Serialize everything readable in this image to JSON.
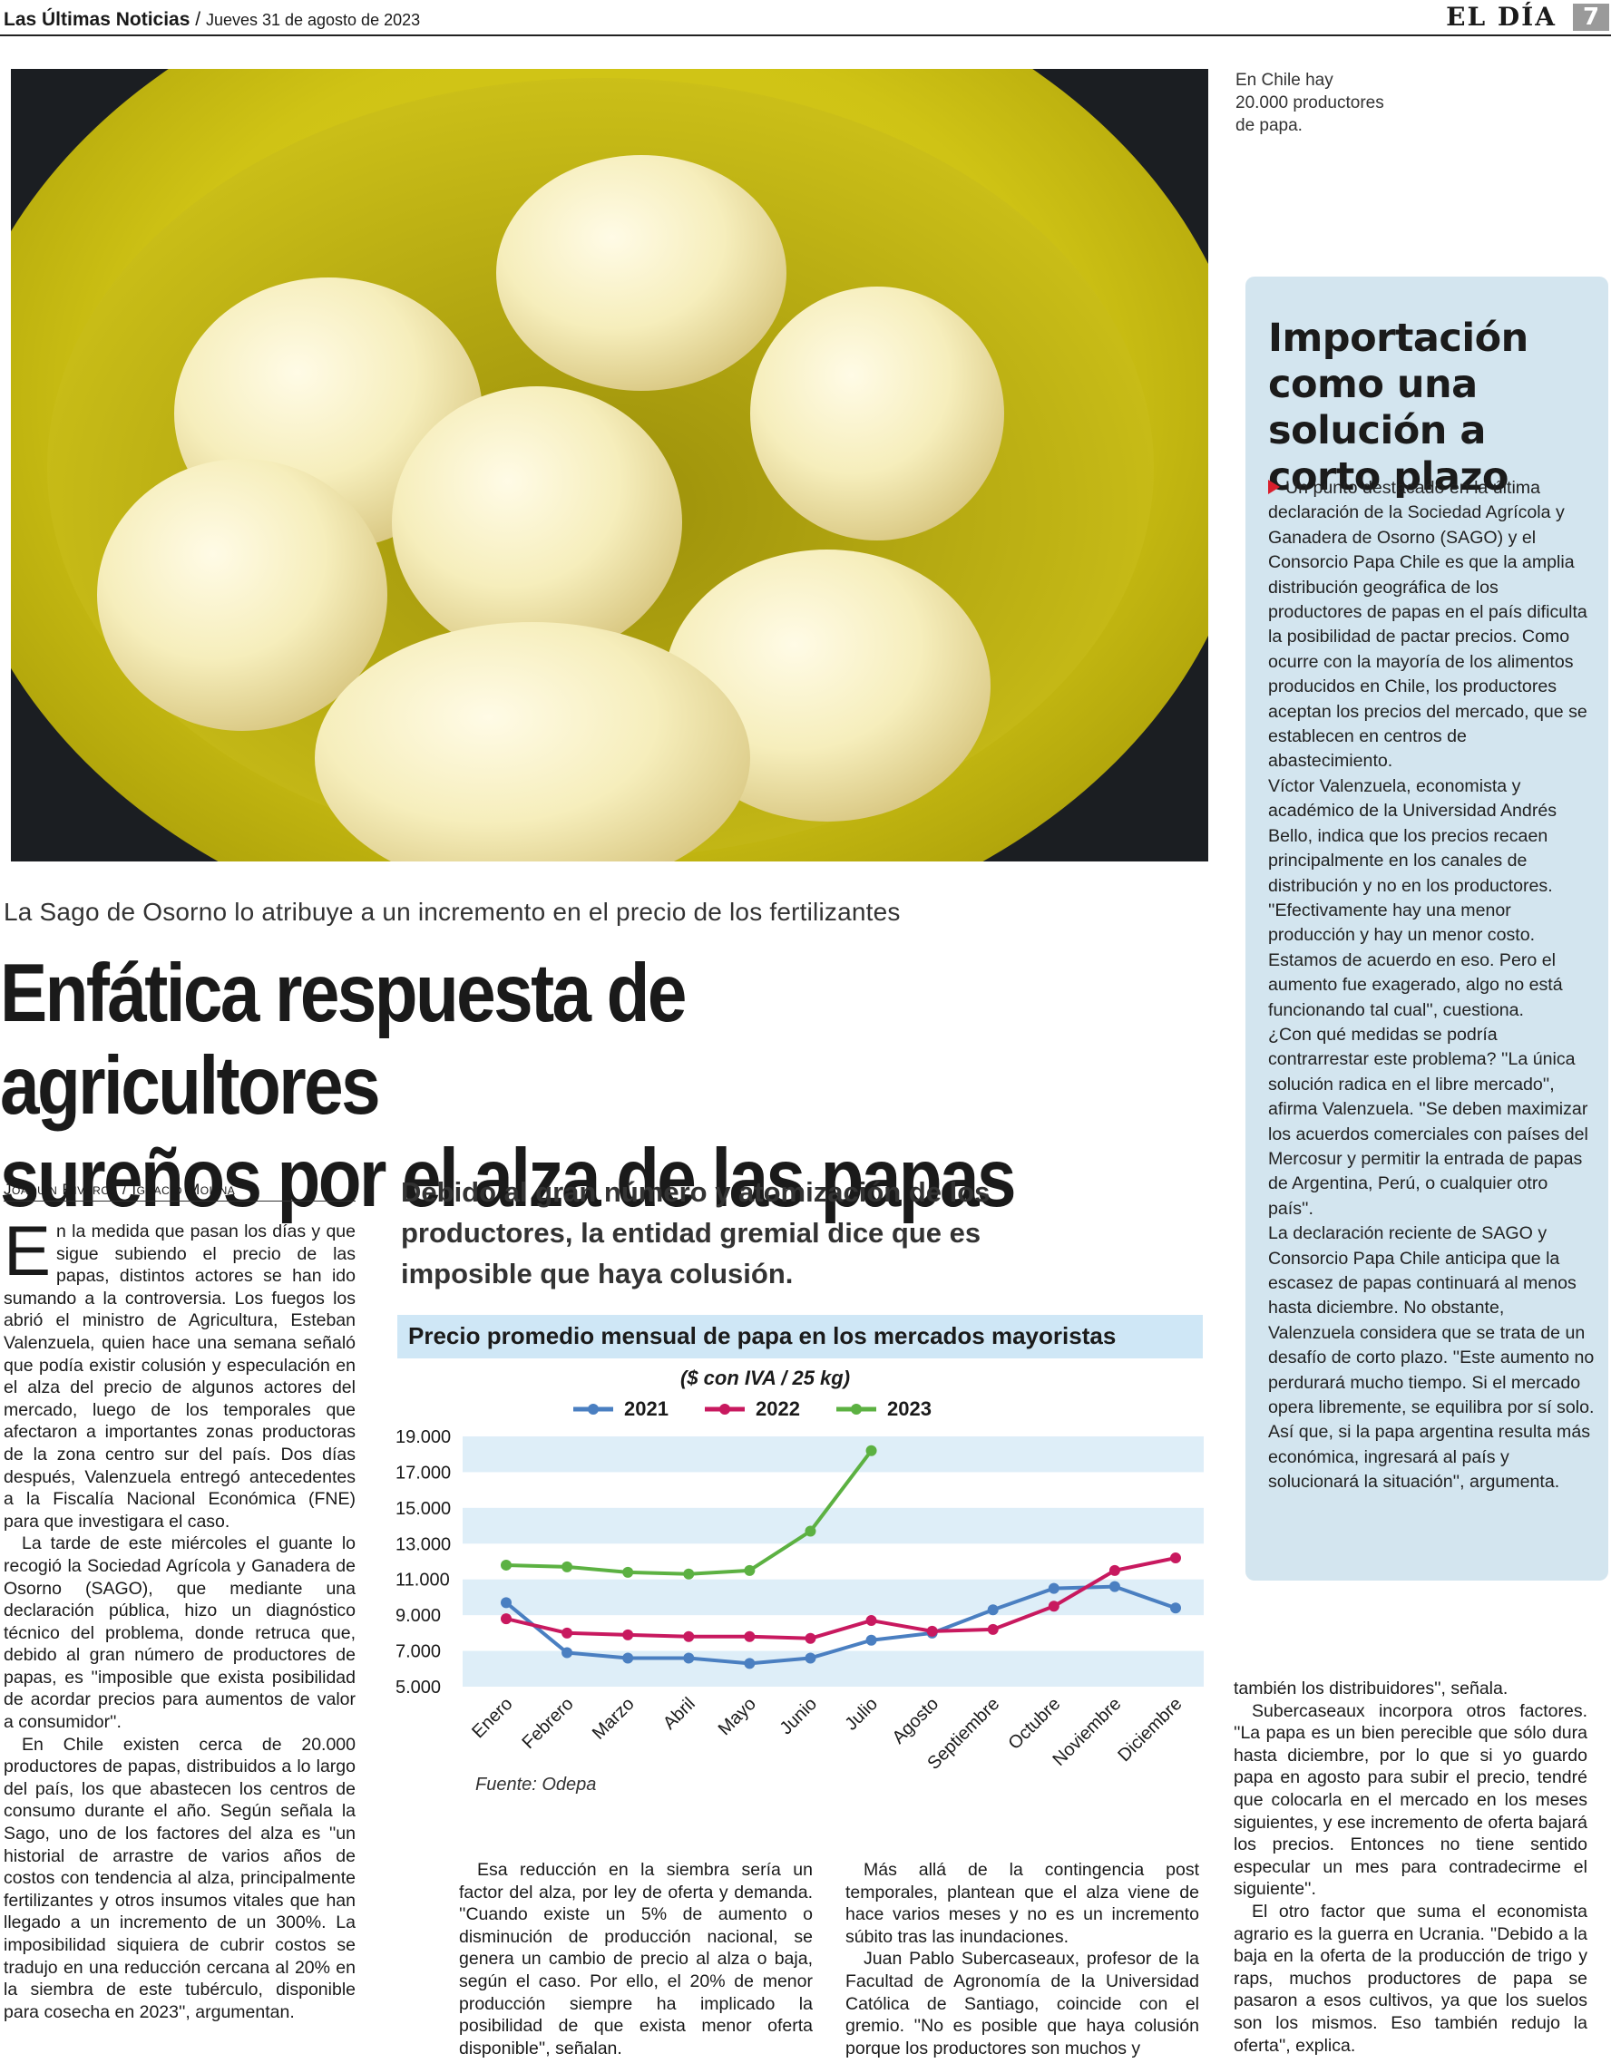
{
  "header": {
    "publication": "Las Últimas Noticias",
    "separator": "/",
    "date": "Jueves 31 de agosto de 2023",
    "section": "EL DÍA",
    "page_number": "7"
  },
  "photo": {
    "caption": "En Chile hay 20.000 productores de papa."
  },
  "kicker": "La Sago de Osorno lo atribuye a un incremento en el precio de los fertilizantes",
  "headline": {
    "line1": "Enfática respuesta de agricultores",
    "line2": "sureños por el alza de las papas"
  },
  "byline": "Joaquín Riveros / Ignacio Molina",
  "deck": "Debido al gran número y atomización de los productores, la entidad gremial dice que es imposible que haya colusión.",
  "body": {
    "col1": {
      "dropcap": "E",
      "p1": "n la medida que pasan los días y que sigue subiendo el precio de las papas, distintos actores se han ido sumando a la controversia. Los fuegos los abrió el ministro de Agricultura, Esteban Valenzuela, quien hace una semana señaló que podía existir colusión y especulación en el alza del precio de algunos actores del mercado, luego de los temporales que afectaron a importantes zonas productoras de la zona centro sur del país. Dos días después, Valenzuela entregó antecedentes a la Fiscalía Nacional Económica (FNE) para que investigara el caso.",
      "p2": "La tarde de este miércoles el guante lo recogió la Sociedad Agrícola y Ganadera de Osorno (SAGO), que mediante una declaración pública, hizo un diagnóstico técnico del problema, donde retruca que, debido al gran número de productores de papas, es ''imposible que exista posibilidad de acordar precios para aumentos de valor a consumidor''.",
      "p3": "En Chile existen cerca de 20.000 productores de papas, distribuidos a lo largo del país, los que abastecen los centros de consumo durante el año. Según señala la Sago, uno de los factores del alza es ''un historial de arrastre de varios años de costos con tendencia al alza, principalmente fertilizantes y otros insumos vitales que han llegado a un incremento de un 300%. La imposibilidad siquiera de cubrir costos se tradujo en una reducción cercana al 20% en la siembra de este tubérculo, disponible para cosecha en 2023'', argumentan."
    },
    "col2": {
      "p1": "Esa reducción en la siembra sería un factor del alza, por ley de oferta y demanda. ''Cuando existe un 5% de aumento o disminución de producción nacional, se genera un cambio de precio al alza o baja, según el caso. Por ello, el 20% de menor producción siempre ha implicado la posibilidad de que exista menor oferta disponible'', señalan."
    },
    "col3": {
      "p1": "Más allá de la contingencia post temporales, plantean que el alza viene de hace varios meses y no es un incremento súbito tras las inundaciones.",
      "p2": "Juan Pablo Subercaseaux, profesor de la Facultad de Agronomía de la Universidad Católica de Santiago, coincide con el gremio. ''No es posible que haya colusión porque los productores son muchos y"
    },
    "col4": {
      "p1": "también los distribuidores'', señala.",
      "p2": "Subercaseaux incorpora otros factores. ''La papa es un bien perecible que sólo dura hasta diciembre, por lo que si yo guardo papa en agosto para subir el precio, tendré que colocarla en el mercado en los meses siguientes, y ese incremento de oferta bajará los precios. Entonces no tiene sentido especular un mes para contradecirme el siguiente''.",
      "p3": "El otro factor que suma el economista agrario es la guerra en Ucrania. ''Debido a la baja en la oferta de la producción de trigo y raps, muchos productores de papa se pasaron a esos cultivos, ya que los suelos son los mismos. Eso también redujo la oferta'', explica."
    }
  },
  "sidebar": {
    "title": "Importación como una solución a corto plazo",
    "p1": "Un punto destacado en la última declaración de la Sociedad Agrícola y Ganadera de Osorno (SAGO) y el Consorcio Papa Chile es que la amplia distribución geográfica de los productores de papas en el país dificulta la posibilidad de pactar precios. Como ocurre con la mayoría de los alimentos producidos en Chile, los productores aceptan los precios del mercado, que se establecen en centros de abastecimiento.",
    "p2": "Víctor Valenzuela, economista y académico de la Universidad Andrés Bello, indica que los precios recaen principalmente en los canales de distribución y no en los productores. ''Efectivamente hay una menor producción y hay un menor costo. Estamos de acuerdo en eso. Pero el aumento fue exagerado, algo no está funcionando tal cual'', cuestiona.",
    "p3": "¿Con qué medidas se podría contrarrestar este problema? ''La única solución radica en el libre mercado'', afirma Valenzuela. ''Se deben maximizar los acuerdos comerciales con países del Mercosur y permitir la entrada de papas de Argentina, Perú, o cualquier otro país''.",
    "p4": "La declaración reciente de SAGO y Consorcio Papa Chile anticipa que la escasez de papas continuará al menos hasta diciembre. No obstante, Valenzuela considera que se trata de un desafío de corto plazo. ''Este aumento no perdurará mucho tiempo. Si el mercado opera libremente, se equilibra por sí solo. Así que, si la papa argentina resulta más económica, ingresará al país y solucionará la situación'', argumenta."
  },
  "chart_data": {
    "type": "line",
    "title": "Precio promedio mensual de papa en los mercados mayoristas",
    "subtitle": "($ con IVA / 25 kg)",
    "source": "Fuente: Odepa",
    "categories": [
      "Enero",
      "Febrero",
      "Marzo",
      "Abril",
      "Mayo",
      "Junio",
      "Julio",
      "Agosto",
      "Septiembre",
      "Octubre",
      "Noviembre",
      "Diciembre"
    ],
    "yticks": [
      "19.000",
      "17.000",
      "15.000",
      "13.000",
      "11.000",
      "9.000",
      "7.000",
      "5.000"
    ],
    "ytick_values": [
      19000,
      17000,
      15000,
      13000,
      11000,
      9000,
      7000,
      5000
    ],
    "ylim": [
      5000,
      19000
    ],
    "legend_position": "top",
    "series": [
      {
        "name": "2021",
        "color": "#4a7fc1",
        "values": [
          9700,
          6900,
          6600,
          6600,
          6300,
          6600,
          7600,
          8000,
          9300,
          10500,
          10600,
          9400
        ]
      },
      {
        "name": "2022",
        "color": "#c8195f",
        "values": [
          8800,
          8000,
          7900,
          7800,
          7800,
          7700,
          8700,
          8100,
          8200,
          9500,
          11500,
          12200
        ]
      },
      {
        "name": "2023",
        "color": "#5cb142",
        "values": [
          11800,
          11700,
          11400,
          11300,
          11500,
          13700,
          18200,
          null,
          null,
          null,
          null,
          null
        ]
      }
    ]
  }
}
